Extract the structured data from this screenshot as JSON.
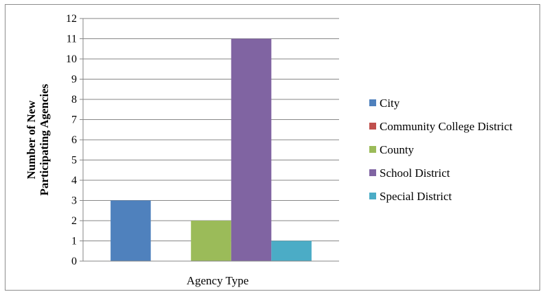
{
  "chart_data": {
    "type": "bar",
    "title": "",
    "xlabel": "Agency Type",
    "ylabel_lines": [
      "Number of New",
      "Participating Agencies"
    ],
    "ylim": [
      0,
      12
    ],
    "yticks": [
      0,
      1,
      2,
      3,
      4,
      5,
      6,
      7,
      8,
      9,
      10,
      11,
      12
    ],
    "grid": true,
    "legend_position": "right",
    "series": [
      {
        "name": "City",
        "values": [
          3
        ],
        "color": "#4F81BD"
      },
      {
        "name": "Community College District",
        "values": [
          0
        ],
        "color": "#C0504D"
      },
      {
        "name": "County",
        "values": [
          2
        ],
        "color": "#9BBB59"
      },
      {
        "name": "School District",
        "values": [
          11
        ],
        "color": "#8064A2"
      },
      {
        "name": "Special District",
        "values": [
          1
        ],
        "color": "#4BACC6"
      }
    ]
  }
}
